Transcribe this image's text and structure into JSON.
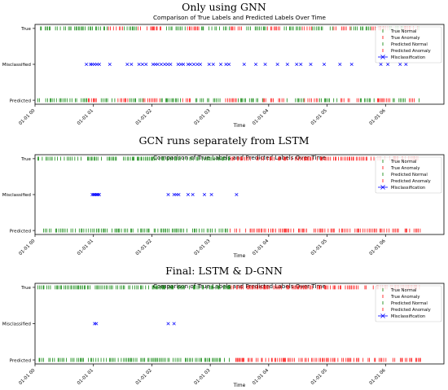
{
  "chart_data": [
    {
      "type": "scatter",
      "panel_title": "Only using GNN",
      "title": "Comparison of True Labels and Predicted Labels Over Time",
      "xlabel": "Time",
      "ylabel": "",
      "xlim": [
        0,
        7.0
      ],
      "x_ticks": [
        "01-01 00",
        "01-01 01",
        "01-01 02",
        "01-01 03",
        "01-01 04",
        "01-01 05",
        "01-01 06"
      ],
      "y_categories": [
        "True",
        "Misclassified",
        "Predicted"
      ],
      "legend_position": "top-right",
      "legend": [
        "True Normal",
        "True Anomaly",
        "Predicted Normal",
        "Predicted Anomaly",
        "Misclassification"
      ],
      "true_anomaly_ranges": [
        [
          1.25,
          1.5
        ],
        [
          1.75,
          2.25
        ],
        [
          2.6,
          2.85
        ],
        [
          3.35,
          3.55
        ],
        [
          3.95,
          4.2
        ],
        [
          4.55,
          4.75
        ],
        [
          5.1,
          5.4
        ],
        [
          5.75,
          6.05
        ],
        [
          6.3,
          6.55
        ]
      ],
      "pred_anomaly_ranges": [
        [
          0.9,
          1.05
        ],
        [
          1.4,
          1.6
        ],
        [
          1.85,
          2.15
        ],
        [
          2.5,
          2.75
        ],
        [
          3.2,
          3.45
        ],
        [
          3.9,
          4.3
        ],
        [
          4.6,
          4.85
        ],
        [
          5.2,
          5.55
        ],
        [
          5.85,
          6.1
        ],
        [
          6.35,
          6.55
        ]
      ],
      "misclassified_x": [
        0.88,
        0.95,
        0.98,
        1.02,
        1.06,
        1.1,
        1.28,
        1.58,
        1.65,
        1.78,
        1.84,
        1.9,
        2.02,
        2.06,
        2.1,
        2.16,
        2.22,
        2.27,
        2.32,
        2.45,
        2.5,
        2.54,
        2.62,
        2.66,
        2.72,
        2.78,
        2.83,
        2.98,
        3.05,
        3.18,
        3.27,
        3.32,
        3.58,
        3.78,
        3.94,
        4.15,
        4.32,
        4.48,
        4.55,
        4.72,
        4.95,
        5.22,
        5.42,
        5.92,
        6.04,
        6.25,
        6.35
      ]
    },
    {
      "type": "scatter",
      "panel_title": "GCN runs separately from LSTM",
      "title": "Comparison of True Labels and Predicted Labels Over Time",
      "xlabel": "Time",
      "ylabel": "",
      "xlim": [
        0,
        7.0
      ],
      "x_ticks": [
        "01-01 00",
        "01-01 01",
        "01-01 02",
        "01-01 03",
        "01-01 04",
        "01-01 05",
        "01-01 06"
      ],
      "y_categories": [
        "True",
        "Misclassified",
        "Predicted"
      ],
      "legend_position": "top-right",
      "legend": [
        "True Normal",
        "True Anomaly",
        "Predicted Normal",
        "Predicted Anomaly",
        "Misclassification"
      ],
      "true_anomaly_ranges": [
        [
          3.35,
          6.6
        ]
      ],
      "pred_anomaly_ranges": [
        [
          3.3,
          6.6
        ]
      ],
      "misclassified_x": [
        0.98,
        1.0,
        1.02,
        1.04,
        1.06,
        1.08,
        1.1,
        2.28,
        2.38,
        2.42,
        2.46,
        2.62,
        2.7,
        2.9,
        3.02,
        3.45
      ]
    },
    {
      "type": "scatter",
      "panel_title": "Final: LSTM & D-GNN",
      "title": "Comparison of True Labels and Predicted Labels Over Time",
      "xlabel": "Time",
      "ylabel": "",
      "xlim": [
        0,
        7.0
      ],
      "x_ticks": [
        "01-01 00",
        "01-01 01",
        "01-01 02",
        "01-01 03",
        "01-01 04",
        "01-01 05",
        "01-01 06"
      ],
      "y_categories": [
        "True",
        "Misclassified",
        "Predicted"
      ],
      "legend_position": "top-right",
      "legend": [
        "True Normal",
        "True Anomaly",
        "Predicted Normal",
        "Predicted Anomaly",
        "Misclassification"
      ],
      "true_anomaly_ranges": [
        [
          3.35,
          6.6
        ]
      ],
      "pred_anomaly_ranges": [
        [
          3.35,
          6.6
        ]
      ],
      "misclassified_x": [
        1.02,
        1.05,
        2.28,
        2.38
      ]
    }
  ],
  "colors": {
    "normal": "#008000",
    "anomaly": "#ff0000",
    "misclassification": "#0000ff",
    "axes": "#000000"
  }
}
